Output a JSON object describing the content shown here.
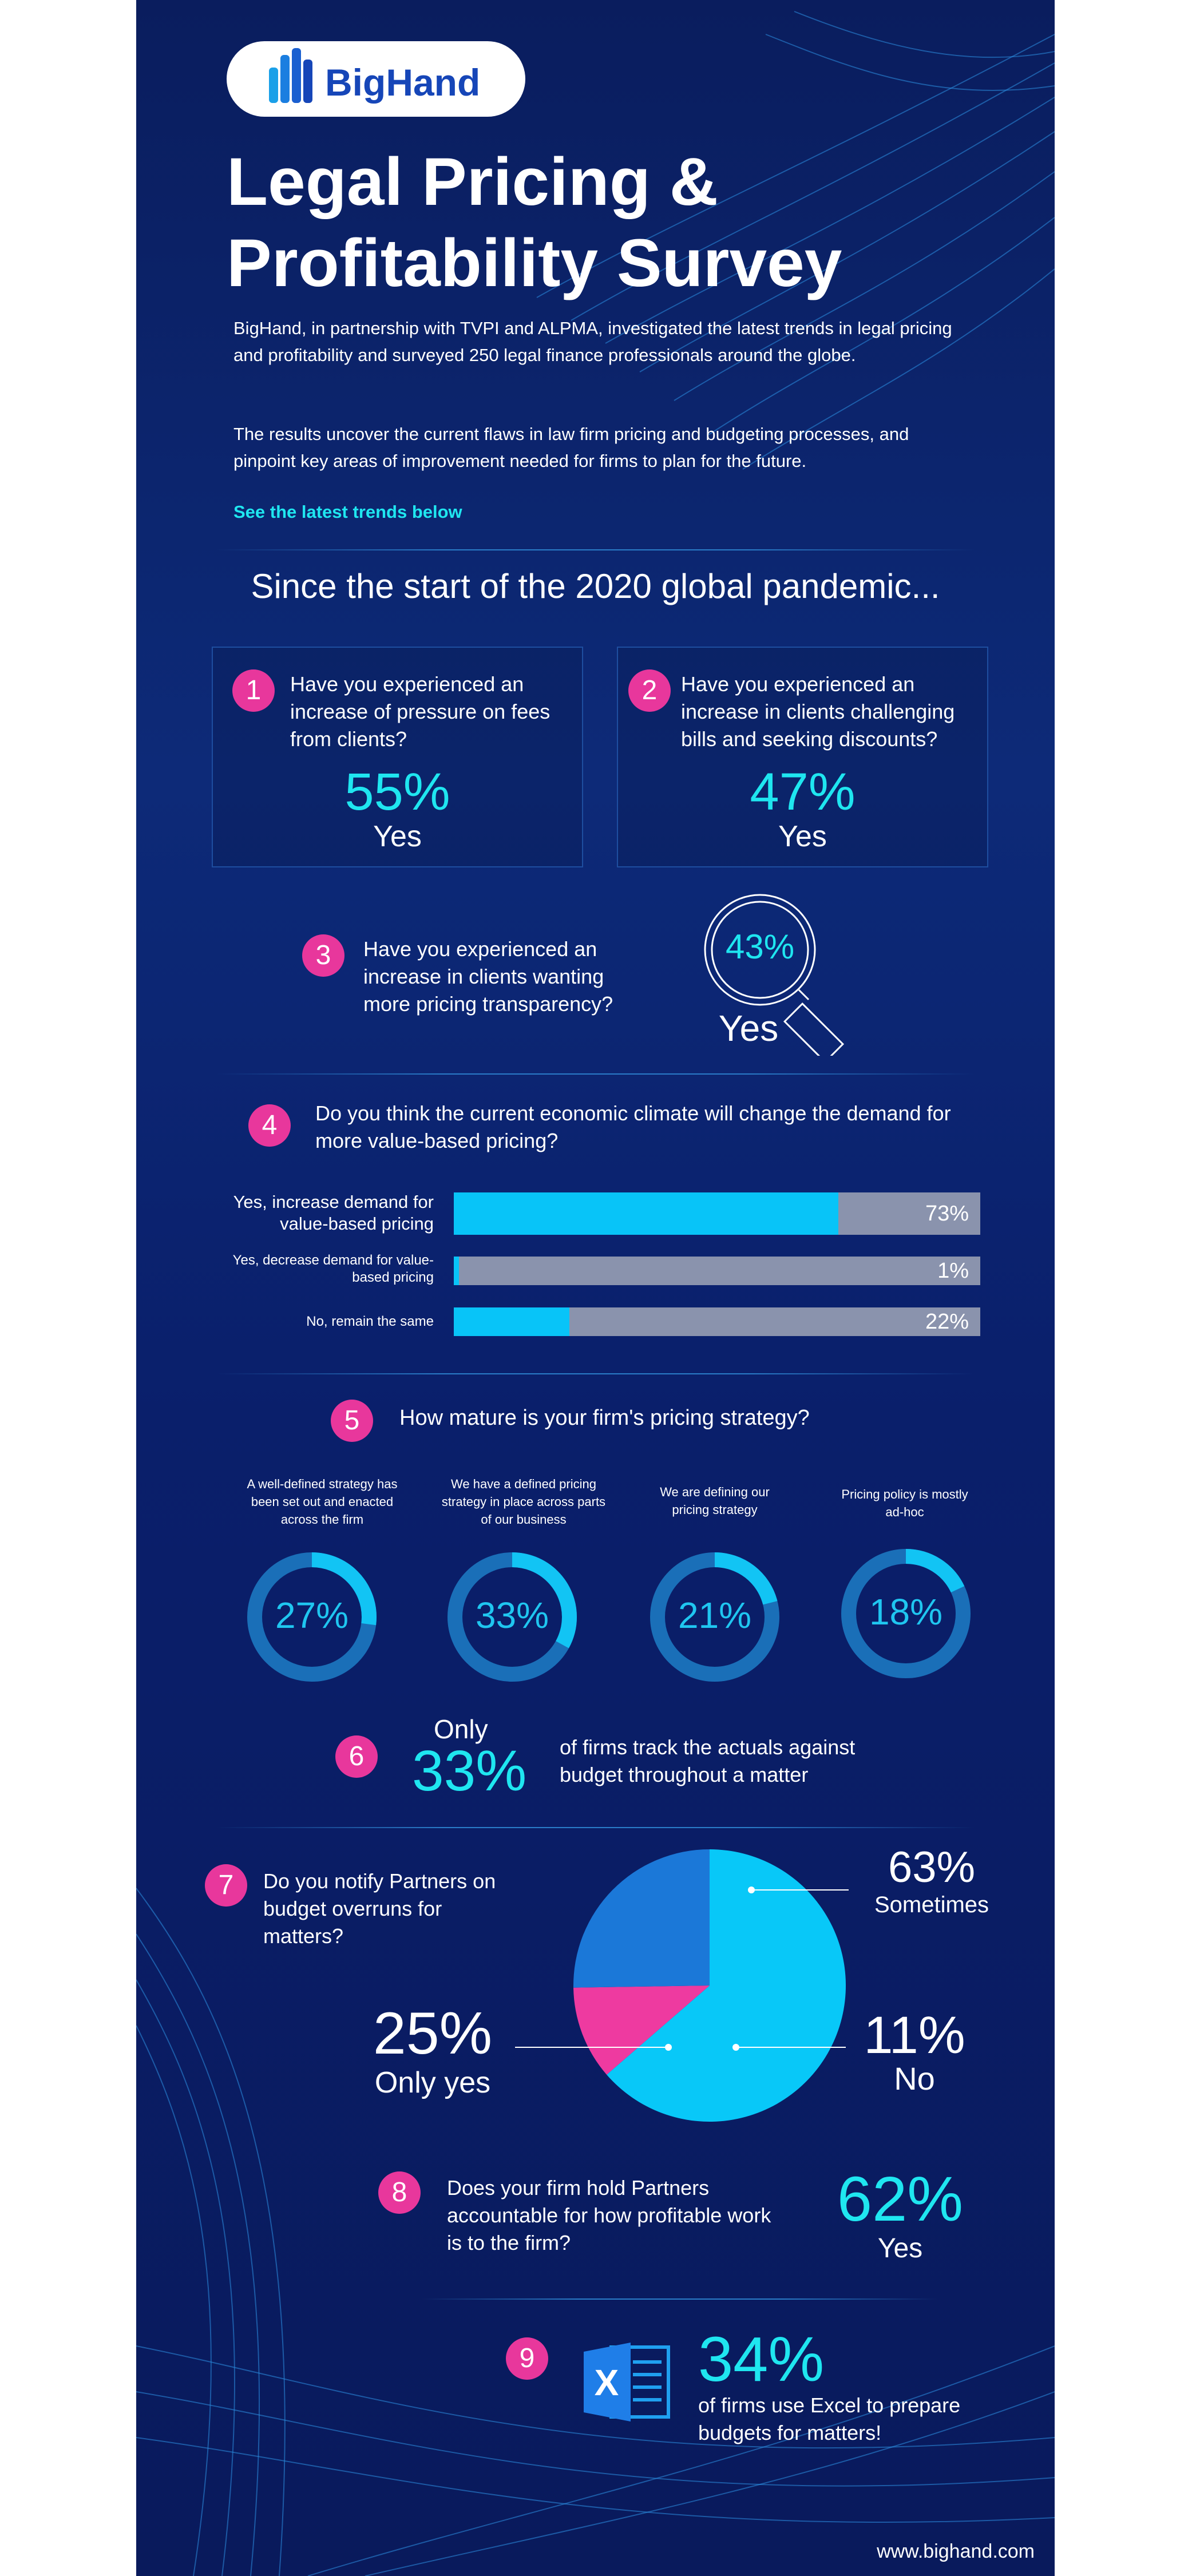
{
  "brand": {
    "logo_text": "BigHand",
    "website": "www.bighand.com"
  },
  "header": {
    "title_line1": "Legal Pricing &",
    "title_line2": "Profitability Survey",
    "intro_p1": "BigHand, in partnership with TVPI and ALPMA, investigated the latest trends in legal pricing and profitability and surveyed 250 legal finance professionals around the globe.",
    "intro_p2": "The results uncover the current flaws in law firm pricing and budgeting processes, and pinpoint key areas of improvement needed for firms to plan for the future.",
    "cta": "See the latest trends below"
  },
  "section_heading": "Since the start of the 2020 global pandemic...",
  "q1": {
    "num": "1",
    "text": "Have you experienced an increase of pressure on fees from clients?",
    "value": "55%",
    "answer": "Yes"
  },
  "q2": {
    "num": "2",
    "text": "Have you experienced an increase in clients challenging bills and seeking discounts?",
    "value": "47%",
    "answer": "Yes"
  },
  "q3": {
    "num": "3",
    "text": "Have you experienced an increase in clients wanting more pricing transparency?",
    "value": "43%",
    "answer": "Yes"
  },
  "q4": {
    "num": "4",
    "text": "Do you think the current economic climate will change the demand for more value-based pricing?",
    "bars": [
      {
        "label": "Yes, increase demand for value-based pricing",
        "value": 73,
        "display": "73%"
      },
      {
        "label": "Yes, decrease demand for value-based pricing",
        "value": 1,
        "display": "1%"
      },
      {
        "label": "No, remain the same",
        "value": 22,
        "display": "22%"
      }
    ]
  },
  "q5": {
    "num": "5",
    "text": "How mature is your firm's pricing strategy?",
    "items": [
      {
        "label": "A well-defined strategy has been set out and enacted across the firm",
        "value": 27,
        "display": "27%"
      },
      {
        "label": "We have a defined pricing strategy in place across parts of our business",
        "value": 33,
        "display": "33%"
      },
      {
        "label": "We are defining our pricing strategy",
        "value": 21,
        "display": "21%"
      },
      {
        "label": "Pricing policy is mostly ad-hoc",
        "value": 18,
        "display": "18%"
      }
    ]
  },
  "q6": {
    "num": "6",
    "prefix": "Only",
    "value": "33%",
    "text": "of firms track the actuals against budget throughout a matter"
  },
  "q7": {
    "num": "7",
    "text": "Do you notify Partners on budget overruns for matters?",
    "slices": [
      {
        "label": "Sometimes",
        "value": 63,
        "display": "63%",
        "color": "#08c8f8"
      },
      {
        "label": "No",
        "value": 11,
        "display": "11%",
        "color": "#ee3aa0"
      },
      {
        "label": "Only yes",
        "value": 25,
        "display": "25%",
        "color": "#1b78d8"
      }
    ]
  },
  "q8": {
    "num": "8",
    "text": "Does your firm hold Partners accountable for how profitable work is to the firm?",
    "value": "62%",
    "answer": "Yes"
  },
  "q9": {
    "num": "9",
    "value": "34%",
    "text": "of firms use Excel to prepare budgets for matters!"
  },
  "colors": {
    "accent": "#1fe6f0",
    "badge": "#e8379c",
    "bar_fill": "#08c4f8",
    "bar_track": "#8a93ad",
    "background": "#0a1d5e"
  }
}
